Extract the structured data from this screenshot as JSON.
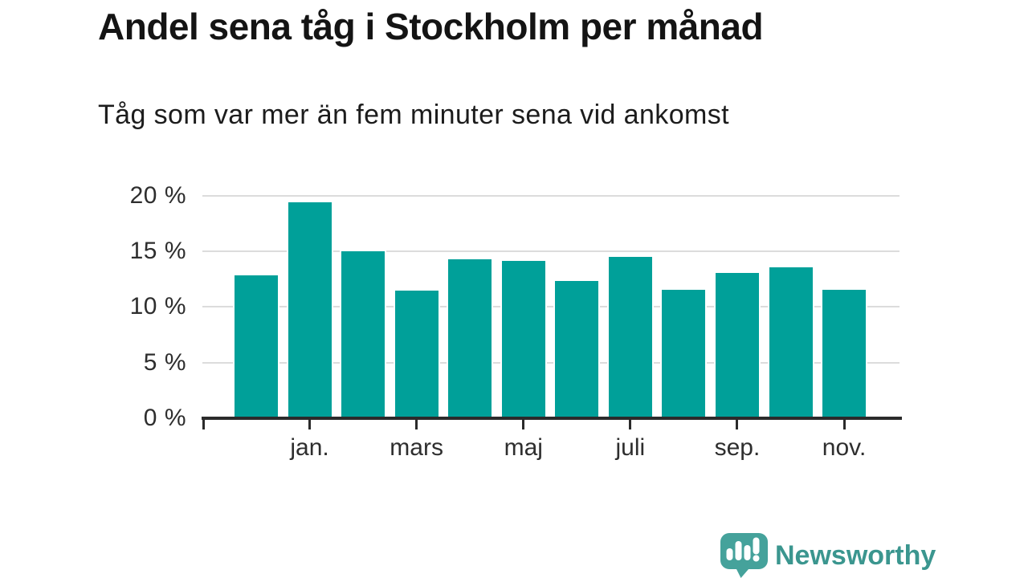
{
  "chart": {
    "title": "Andel sena tåg i Stockholm per månad",
    "subtitle": "Tåg som var mer än fem minuter sena vid ankomst"
  },
  "chart_data": {
    "type": "bar",
    "title": "Andel sena tåg i Stockholm per månad",
    "subtitle": "Tåg som var mer än fem minuter sena vid ankomst",
    "unit": "%",
    "categories": [
      "",
      "jan.",
      "",
      "mars",
      "",
      "maj",
      "",
      "juli",
      "",
      "sep.",
      "",
      "nov."
    ],
    "values": [
      13.0,
      19.5,
      15.1,
      11.6,
      14.4,
      14.3,
      12.5,
      14.6,
      11.7,
      13.2,
      13.7,
      11.7
    ],
    "xlabel": "",
    "ylabel": "",
    "ylim": [
      0,
      21
    ],
    "y_ticks": [
      0,
      5,
      10,
      15,
      20
    ],
    "y_tick_labels": [
      "0 %",
      "5 %",
      "10 %",
      "15 %",
      "20 %"
    ],
    "x_tick_indices": [
      1,
      3,
      5,
      7,
      9,
      11
    ],
    "x_tick_labels": [
      "jan.",
      "mars",
      "maj",
      "juli",
      "sep.",
      "nov."
    ],
    "grid": "horizontal",
    "legend": "none",
    "bar_color": "#00a099"
  },
  "branding": {
    "logo_text": "Newsworthy",
    "logo_text_color": "#3b968f",
    "logo_bubble_color": "#45a29b",
    "icon": "bar-chart-speech-bubble"
  },
  "colors": {
    "background": "#ffffff",
    "bar": "#00a099",
    "grid": "#dcdcdc",
    "axis": "#2b2b2b",
    "text": "#1a1a1a"
  }
}
